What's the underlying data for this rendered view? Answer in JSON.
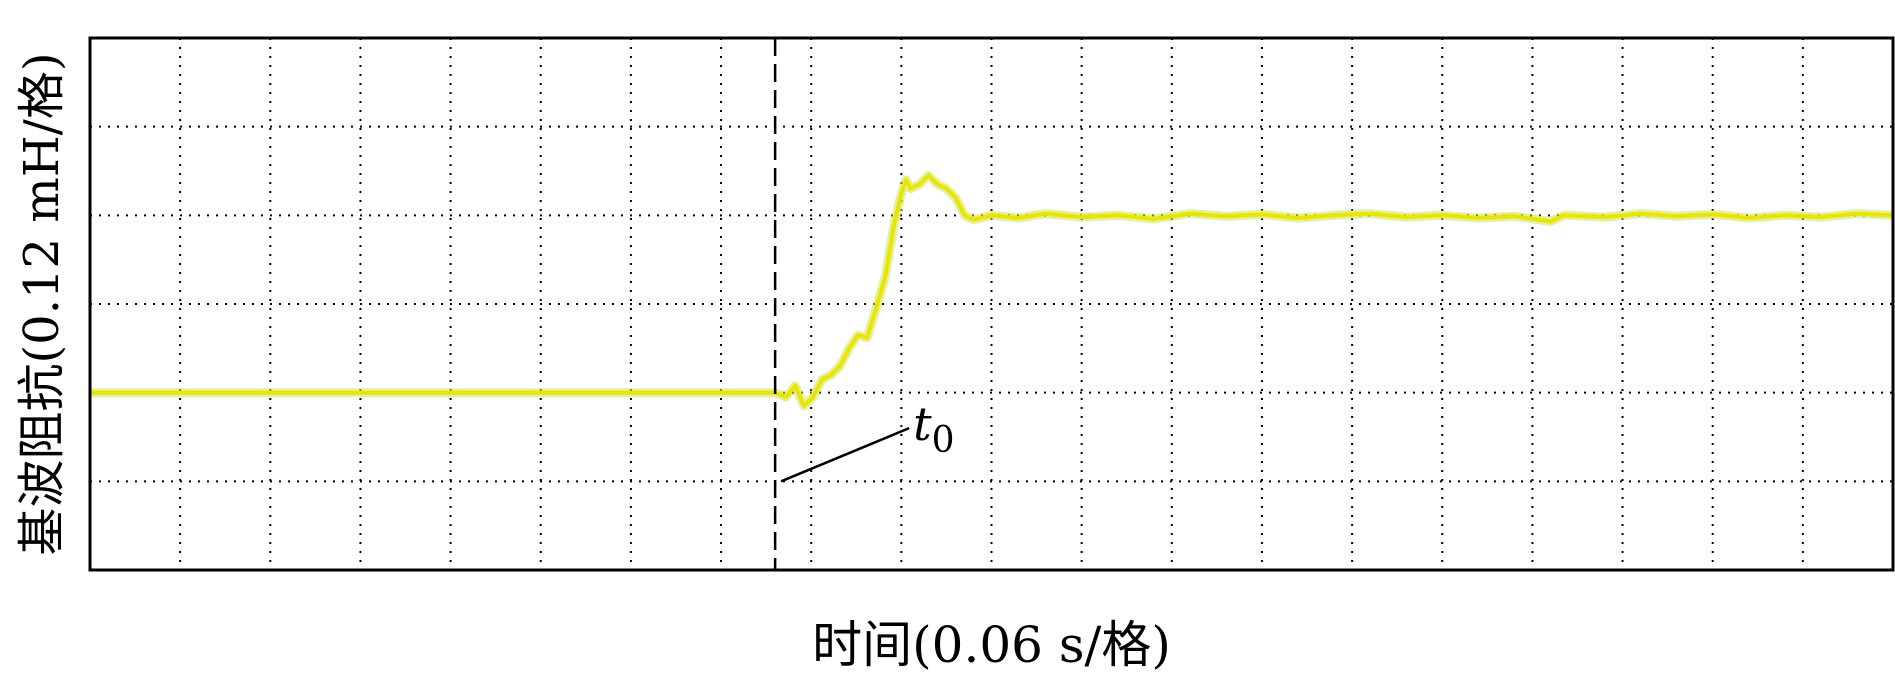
{
  "chart_data": {
    "type": "line",
    "xlabel": "时间(0.06 s/格)",
    "ylabel": "基波阻抗(0.12 mH/格)",
    "grid": true,
    "grid_style": "dotted",
    "xlim": [
      0,
      20
    ],
    "ylim": [
      0,
      6
    ],
    "x_divisions": 20,
    "y_divisions": 6,
    "series": [
      {
        "color": "#e6e600",
        "points": [
          [
            0,
            2.0
          ],
          [
            7.6,
            2.0
          ],
          [
            7.72,
            1.95
          ],
          [
            7.82,
            2.08
          ],
          [
            7.92,
            1.85
          ],
          [
            8.02,
            1.95
          ],
          [
            8.12,
            2.15
          ],
          [
            8.22,
            2.2
          ],
          [
            8.32,
            2.3
          ],
          [
            8.42,
            2.5
          ],
          [
            8.52,
            2.65
          ],
          [
            8.62,
            2.62
          ],
          [
            8.72,
            2.95
          ],
          [
            8.82,
            3.3
          ],
          [
            8.92,
            3.9
          ],
          [
            9.0,
            4.25
          ],
          [
            9.05,
            4.4
          ],
          [
            9.1,
            4.3
          ],
          [
            9.2,
            4.35
          ],
          [
            9.3,
            4.45
          ],
          [
            9.4,
            4.35
          ],
          [
            9.5,
            4.3
          ],
          [
            9.6,
            4.2
          ],
          [
            9.7,
            4.0
          ],
          [
            9.8,
            3.95
          ],
          [
            10.0,
            4.0
          ],
          [
            10.3,
            3.97
          ],
          [
            10.6,
            4.02
          ],
          [
            11.0,
            3.98
          ],
          [
            11.4,
            4.0
          ],
          [
            11.8,
            3.96
          ],
          [
            12.2,
            4.02
          ],
          [
            12.6,
            3.99
          ],
          [
            13.0,
            4.01
          ],
          [
            13.4,
            3.97
          ],
          [
            13.8,
            4.0
          ],
          [
            14.2,
            4.02
          ],
          [
            14.6,
            3.98
          ],
          [
            15.0,
            4.0
          ],
          [
            15.4,
            3.97
          ],
          [
            15.8,
            3.99
          ],
          [
            16.2,
            3.93
          ],
          [
            16.35,
            4.0
          ],
          [
            16.8,
            3.98
          ],
          [
            17.2,
            4.02
          ],
          [
            17.6,
            3.99
          ],
          [
            18.0,
            4.01
          ],
          [
            18.4,
            3.97
          ],
          [
            18.8,
            4.0
          ],
          [
            19.2,
            3.98
          ],
          [
            19.6,
            4.02
          ],
          [
            20.0,
            4.0
          ]
        ]
      }
    ],
    "annotations": [
      {
        "type": "vline",
        "x": 7.6,
        "style": "dashed",
        "label": "t",
        "subscript": "0"
      }
    ]
  }
}
